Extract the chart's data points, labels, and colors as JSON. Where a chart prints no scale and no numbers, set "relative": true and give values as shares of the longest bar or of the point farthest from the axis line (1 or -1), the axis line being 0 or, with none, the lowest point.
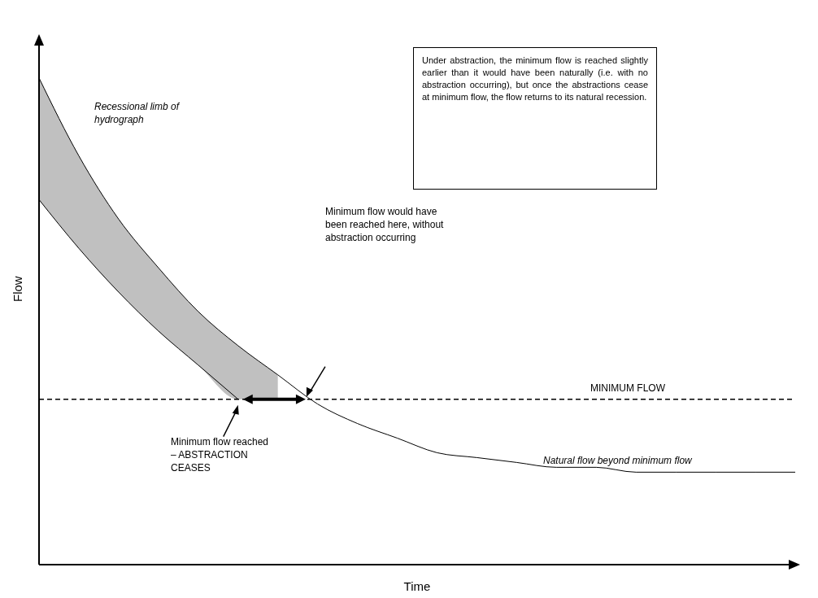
{
  "chart_data": {
    "type": "line",
    "relative": true,
    "xlabel": "Time",
    "ylabel": "Flow",
    "categories": [
      null,
      null,
      null,
      null,
      null,
      null,
      null,
      null,
      null,
      null,
      null,
      null,
      null,
      null,
      null,
      null,
      null,
      null,
      null,
      null
    ],
    "series": [
      {
        "color": "#000000",
        "values": [
          1,
          0.84,
          0.71,
          0.61,
          0.52,
          0.45,
          0.39,
          0.33,
          0.29,
          0.26,
          0.23,
          0.22,
          0.21,
          0.2,
          0.2,
          0.19,
          0.19,
          0.19,
          0.19,
          0.19
        ],
        "lower": [
          0.75,
          0.65,
          0.56,
          0.48,
          0.41,
          0.34,
          0.34,
          null,
          null,
          null,
          null,
          null,
          null,
          null,
          null,
          null,
          null,
          null,
          null,
          null
        ],
        "upper": [
          1,
          0.84,
          0.71,
          0.61,
          0.52,
          0.45,
          0.39,
          null,
          null,
          null,
          null,
          null,
          null,
          null,
          null,
          null,
          null,
          null,
          null,
          null
        ]
      },
      {
        "color": "#000000",
        "values": [
          0.75,
          0.65,
          0.56,
          0.48,
          0.41,
          0.34,
          null,
          null,
          null,
          null,
          null,
          null,
          null,
          null,
          null,
          null,
          null,
          null,
          null,
          null
        ]
      }
    ],
    "ref_lines": [
      {
        "axis": "y",
        "value": 0.34,
        "label": "MINIMUM FLOW",
        "line_style": "dashed",
        "color": "#000000"
      }
    ],
    "annotations": [
      "Under abstraction, the minimum flow is reached slightly earlier than it would have been naturally (i.e. with no abstraction occurring), but once the abstractions cease at minimum flow, the flow returns to its natural recession.",
      "Recessional limb of hydrograph",
      "Minimum flow would have been reached here, without abstraction occurring",
      "Minimum flow reached – ABSTRACTION CEASES",
      "Natural flow beyond minimum flow"
    ],
    "marker": "none"
  }
}
